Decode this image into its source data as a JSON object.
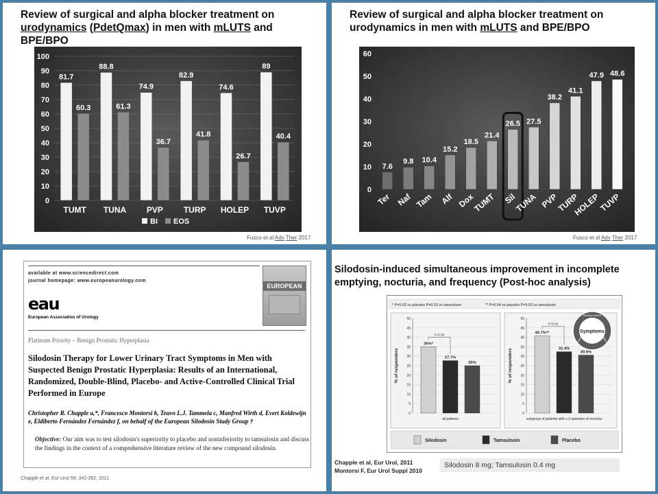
{
  "panel1": {
    "title_parts": [
      "Review of surgical and alpha blocker treatment on",
      "urodynamics",
      " (",
      "PdetQmax",
      ") in men with ",
      "mLUTS",
      " and",
      "BPE/BPO"
    ],
    "citation_parts": [
      "Fusco et al ",
      "Adv",
      " ",
      "Ther",
      " 2017"
    ],
    "chart_data": {
      "type": "bar",
      "categories": [
        "TUMT",
        "TUNA",
        "PVP",
        "TURP",
        "HOLEP",
        "TUVP"
      ],
      "series": [
        {
          "name": "BI",
          "values": [
            81.7,
            88.8,
            74.9,
            82.9,
            74.6,
            89
          ],
          "color": "#f2f2f2"
        },
        {
          "name": "EOS",
          "values": [
            60.3,
            61.3,
            36.7,
            41.8,
            26.7,
            40.4
          ],
          "color": "#8c8c8c"
        }
      ],
      "ylim": [
        0,
        100
      ],
      "yticks": [
        "0",
        "10",
        "20",
        "30",
        "40",
        "50",
        "60",
        "70",
        "80",
        "90",
        "100"
      ],
      "legend": [
        "BI",
        "EOS"
      ]
    }
  },
  "panel2": {
    "title_parts": [
      "Review of surgical and alpha blocker treatment on",
      "urodynamics in men with ",
      "mLUTS",
      " and BPE/BPO"
    ],
    "citation_parts": [
      "Fusco et al ",
      "Adv",
      " ",
      "Ther",
      " 2017"
    ],
    "chart_data": {
      "type": "bar",
      "categories": [
        "Ter",
        "Naf",
        "Tam",
        "Alf",
        "Dox",
        "TUMT",
        "Sil",
        "TUNA",
        "PVP",
        "TURP",
        "HOLEP",
        "TUVP"
      ],
      "values": [
        7.6,
        9.8,
        10.4,
        15.2,
        18.5,
        21.4,
        26.5,
        27.5,
        38.2,
        41.1,
        47.9,
        48.6
      ],
      "labels": [
        "7.6",
        "9.8",
        "10.4",
        "15.2",
        "18.5",
        "21.4",
        "26.5",
        "27.5",
        "38.2",
        "41.1",
        "47.9",
        "48.6"
      ],
      "ylim": [
        0,
        60
      ],
      "yticks": [
        "0",
        "10",
        "20",
        "30",
        "40",
        "50",
        "60"
      ],
      "highlighted": "Sil"
    }
  },
  "panel3": {
    "header_line1": "available at www.sciencedirect.com",
    "header_line2": "journal homepage: www.europeanurology.com",
    "logo_text": "eau",
    "logo_sub": "European Association of Urology",
    "cover_text": "EUROPEAN",
    "category": "Platinum Priority – Benign Prostatic Hyperplasia",
    "title": "Silodosin Therapy for Lower Urinary Tract Symptoms in Men with Suspected Benign Prostatic Hyperplasia: Results of an International, Randomized, Double-Blind, Placebo- and Active-Controlled Clinical Trial Performed in Europe",
    "authors": "Christopher R. Chapple a,*, Francesco Montorsi b, Teuvo L.J. Tammela c, Manfred Wirth d, Evert Koldewijn e, Eldiberto Fernández Fernández f, on behalf of the European Silodosin Study Group †",
    "objective_label": "Objective:",
    "objective_text": " Our aim was to test silodosin's superiority to placebo and noninferiority to tamsulosin and discuss the findings in the context of a comprehensive literature review of the new compound silodosin.",
    "citation": "Chapple et al. Eur Urol 59: 342-352, 2011"
  },
  "panel4": {
    "title_line1": "Silodosin-induced simultaneous improvement in incomplete",
    "title_line2": "emptying, nocturia, and frequency  (Post-hoc analysis)",
    "footnote_left": "* P=0.02 vs placebo  P=0.03 vs tamsulosin",
    "footnote_right": "** P=0.04 vs placebo  P=0.03 vs tamsulosin",
    "badge_center": "Symptoms",
    "badge_ring": [
      "Residual volume",
      "Nocturia",
      "Frequency"
    ],
    "ylabel": "% of responders",
    "chart_data": [
      {
        "type": "bar",
        "xlabel": "all patients",
        "categories": [
          "Silodosin",
          "Tamsulosin",
          "Placebo"
        ],
        "values": [
          35,
          27.7,
          25
        ],
        "labels": [
          "35%*",
          "27.7%",
          "25%"
        ],
        "bracket": "P=0.03",
        "ylim": [
          0,
          50
        ],
        "yticks": [
          "0",
          "5",
          "10",
          "15",
          "20",
          "25",
          "30",
          "35",
          "40",
          "45",
          "50"
        ]
      },
      {
        "type": "bar",
        "xlabel": "subgroup of patients with ≥ 2 episodes of nocturia",
        "categories": [
          "Silodosin",
          "Tamsulosin",
          "Placebo"
        ],
        "values": [
          40.7,
          32.4,
          30.6
        ],
        "labels": [
          "40.7%**",
          "32.4%",
          "30.6%"
        ],
        "bracket": "P=0.03",
        "ylim": [
          0,
          50
        ],
        "yticks": [
          "0",
          "5",
          "10",
          "15",
          "20",
          "25",
          "30",
          "35",
          "40",
          "45",
          "50"
        ]
      }
    ],
    "legend": [
      "Silodosin",
      "Tamsulosin",
      "Placebo"
    ],
    "citation_line1": "Chapple et al, Eur Urol, 2011",
    "citation_line2": "Montorsi F, Eur Urol Suppl 2010",
    "dose_note": "Silodosin 8 mg; Tamsulosin 0.4 mg"
  }
}
